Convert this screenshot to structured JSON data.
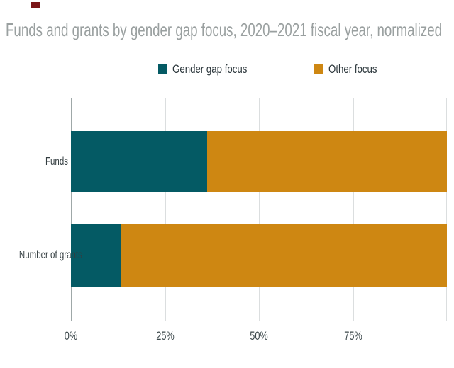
{
  "page": {
    "background": "#ffffff"
  },
  "red_marker": {
    "color": "#7B1618"
  },
  "chart_data": {
    "type": "bar",
    "orientation": "horizontal",
    "stacked": true,
    "normalized": true,
    "title": "Funds and grants by gender gap focus, 2020–2021 fiscal year, normalized",
    "title_color": "#9AA0A0",
    "categories": [
      "Funds",
      "Number of grants"
    ],
    "series": [
      {
        "name": "Gender gap focus",
        "color": "#045A64",
        "values": [
          36.2,
          13.4
        ]
      },
      {
        "name": "Other focus",
        "color": "#CE8712",
        "values": [
          63.8,
          86.6
        ]
      }
    ],
    "x_axis": {
      "range": [
        0,
        100
      ],
      "tick_labels": [
        "0%",
        "25%",
        "50%",
        "75%"
      ],
      "tick_pcts": [
        0,
        25,
        50,
        75
      ],
      "gridline_pcts": [
        0,
        25,
        50,
        75,
        100
      ]
    },
    "ylabel": "",
    "xlabel": "",
    "grid": true,
    "legend_position": "top-center",
    "gridline_color": "#DBDEDF",
    "axis_line_color": "#9FA8A8",
    "label_color": "#3C484B"
  }
}
